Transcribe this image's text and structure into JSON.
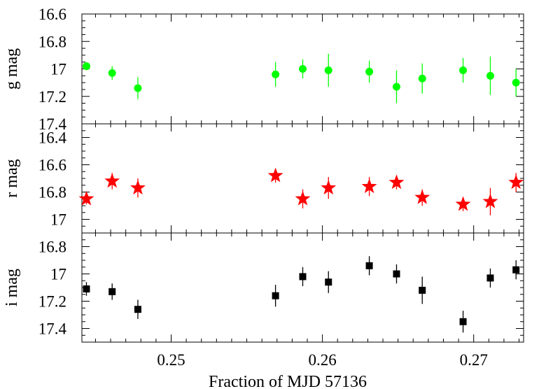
{
  "chart_data": {
    "type": "scatter",
    "xlabel": "Fraction of MJD 57136",
    "xlim": [
      0.2441,
      0.2733
    ],
    "x_ticks": [
      "0.25",
      "0.26",
      "0.27"
    ],
    "x_tick_values": [
      0.25,
      0.26,
      0.27
    ],
    "x_minor_step": 0.001,
    "panels": [
      {
        "ylabel": "g mag",
        "ylim": [
          16.6,
          17.4
        ],
        "inverted": true,
        "y_ticks": [
          "16.6",
          "16.8",
          "17",
          "17.2",
          "17.4"
        ],
        "y_tick_values": [
          16.6,
          16.8,
          17.0,
          17.2,
          17.4
        ],
        "y_minor_step": 0.05,
        "marker": "circle",
        "color": "#00ff00",
        "points": [
          {
            "x": 0.2444,
            "y": 16.98,
            "err": 0.03
          },
          {
            "x": 0.2461,
            "y": 17.03,
            "err": 0.05
          },
          {
            "x": 0.2478,
            "y": 17.14,
            "err": 0.08
          },
          {
            "x": 0.2569,
            "y": 17.04,
            "err": 0.09
          },
          {
            "x": 0.2587,
            "y": 17.0,
            "err": 0.07
          },
          {
            "x": 0.2604,
            "y": 17.01,
            "err": 0.12
          },
          {
            "x": 0.2631,
            "y": 17.02,
            "err": 0.08
          },
          {
            "x": 0.2649,
            "y": 17.13,
            "err": 0.12
          },
          {
            "x": 0.2666,
            "y": 17.07,
            "err": 0.11
          },
          {
            "x": 0.2693,
            "y": 17.01,
            "err": 0.09
          },
          {
            "x": 0.2711,
            "y": 17.05,
            "err": 0.14
          },
          {
            "x": 0.2728,
            "y": 17.1,
            "err": 0.1
          }
        ]
      },
      {
        "ylabel": "r mag",
        "ylim": [
          16.3,
          17.1
        ],
        "inverted": true,
        "y_ticks": [
          "16.4",
          "16.6",
          "16.8",
          "17"
        ],
        "y_tick_values": [
          16.4,
          16.6,
          16.8,
          17.0
        ],
        "y_minor_step": 0.05,
        "marker": "star",
        "color": "#ff0000",
        "points": [
          {
            "x": 0.2444,
            "y": 16.85,
            "err": 0.04
          },
          {
            "x": 0.2461,
            "y": 16.72,
            "err": 0.06
          },
          {
            "x": 0.2478,
            "y": 16.77,
            "err": 0.07
          },
          {
            "x": 0.2569,
            "y": 16.68,
            "err": 0.05
          },
          {
            "x": 0.2587,
            "y": 16.85,
            "err": 0.07
          },
          {
            "x": 0.2604,
            "y": 16.77,
            "err": 0.08
          },
          {
            "x": 0.2631,
            "y": 16.76,
            "err": 0.07
          },
          {
            "x": 0.2649,
            "y": 16.73,
            "err": 0.05
          },
          {
            "x": 0.2666,
            "y": 16.84,
            "err": 0.06
          },
          {
            "x": 0.2693,
            "y": 16.89,
            "err": 0.05
          },
          {
            "x": 0.2711,
            "y": 16.87,
            "err": 0.1
          },
          {
            "x": 0.2728,
            "y": 16.73,
            "err": 0.07
          }
        ]
      },
      {
        "ylabel": "i mag",
        "ylim": [
          16.7,
          17.5
        ],
        "inverted": true,
        "y_ticks": [
          "16.8",
          "17",
          "17.2",
          "17.4"
        ],
        "y_tick_values": [
          16.8,
          17.0,
          17.2,
          17.4
        ],
        "y_minor_step": 0.05,
        "marker": "square",
        "color": "#000000",
        "points": [
          {
            "x": 0.2444,
            "y": 17.11,
            "err": 0.05
          },
          {
            "x": 0.2461,
            "y": 17.13,
            "err": 0.06
          },
          {
            "x": 0.2478,
            "y": 17.26,
            "err": 0.07
          },
          {
            "x": 0.2569,
            "y": 17.16,
            "err": 0.08
          },
          {
            "x": 0.2587,
            "y": 17.02,
            "err": 0.07
          },
          {
            "x": 0.2604,
            "y": 17.06,
            "err": 0.08
          },
          {
            "x": 0.2631,
            "y": 16.94,
            "err": 0.07
          },
          {
            "x": 0.2649,
            "y": 17.0,
            "err": 0.07
          },
          {
            "x": 0.2666,
            "y": 17.12,
            "err": 0.1
          },
          {
            "x": 0.2693,
            "y": 17.35,
            "err": 0.08
          },
          {
            "x": 0.2711,
            "y": 17.03,
            "err": 0.07
          },
          {
            "x": 0.2728,
            "y": 16.97,
            "err": 0.07
          }
        ]
      }
    ]
  }
}
